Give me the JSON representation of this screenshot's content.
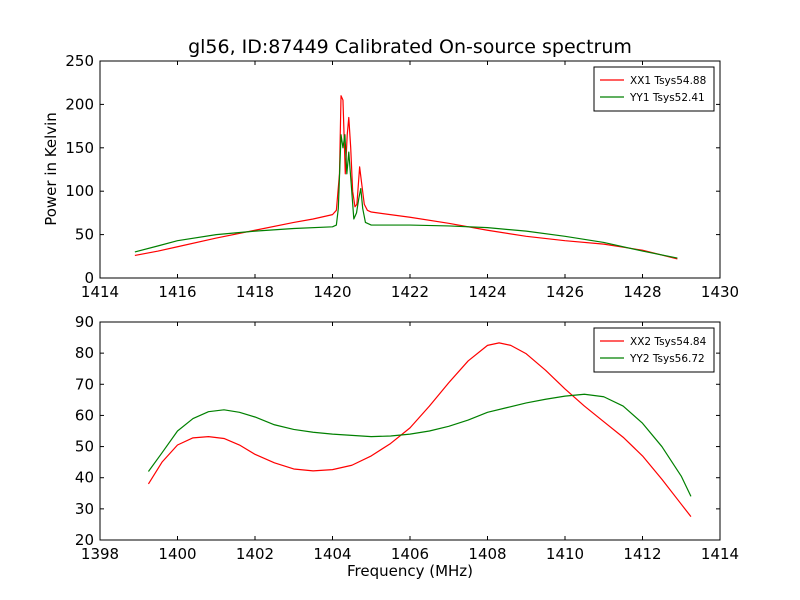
{
  "chart_data": [
    {
      "type": "line",
      "title": "gl56, ID:87449 Calibrated On-source spectrum",
      "xlabel": "",
      "ylabel": "Power in Kelvin",
      "xlim": [
        1414,
        1430
      ],
      "ylim": [
        0,
        250
      ],
      "xticks": [
        1414,
        1416,
        1418,
        1420,
        1422,
        1424,
        1426,
        1428,
        1430
      ],
      "yticks": [
        0,
        50,
        100,
        150,
        200,
        250
      ],
      "grid": false,
      "legend_position": "top-right",
      "series": [
        {
          "name": "XX1 Tsys54.88",
          "color": "#ff0000",
          "points": [
            [
              1414.9,
              26
            ],
            [
              1415.5,
              31
            ],
            [
              1416.0,
              36
            ],
            [
              1417.0,
              46
            ],
            [
              1418.0,
              55
            ],
            [
              1419.0,
              64
            ],
            [
              1419.5,
              68
            ],
            [
              1420.0,
              73
            ],
            [
              1420.1,
              78
            ],
            [
              1420.18,
              120
            ],
            [
              1420.22,
              210
            ],
            [
              1420.27,
              205
            ],
            [
              1420.33,
              120
            ],
            [
              1420.38,
              165
            ],
            [
              1420.42,
              185
            ],
            [
              1420.47,
              150
            ],
            [
              1420.52,
              100
            ],
            [
              1420.58,
              82
            ],
            [
              1420.63,
              85
            ],
            [
              1420.7,
              128
            ],
            [
              1420.75,
              110
            ],
            [
              1420.82,
              85
            ],
            [
              1420.9,
              78
            ],
            [
              1421.0,
              76
            ],
            [
              1422.0,
              70
            ],
            [
              1423.0,
              63
            ],
            [
              1424.0,
              55
            ],
            [
              1425.0,
              48
            ],
            [
              1426.0,
              43
            ],
            [
              1427.0,
              39
            ],
            [
              1428.0,
              32
            ],
            [
              1428.9,
              22
            ]
          ]
        },
        {
          "name": "YY1 Tsys52.41",
          "color": "#008000",
          "points": [
            [
              1414.9,
              30
            ],
            [
              1415.5,
              37
            ],
            [
              1416.0,
              43
            ],
            [
              1417.0,
              50
            ],
            [
              1418.0,
              54
            ],
            [
              1419.0,
              57
            ],
            [
              1420.0,
              59
            ],
            [
              1420.1,
              61
            ],
            [
              1420.15,
              80
            ],
            [
              1420.22,
              165
            ],
            [
              1420.27,
              150
            ],
            [
              1420.32,
              165
            ],
            [
              1420.37,
              120
            ],
            [
              1420.42,
              145
            ],
            [
              1420.48,
              110
            ],
            [
              1420.55,
              68
            ],
            [
              1420.62,
              75
            ],
            [
              1420.68,
              92
            ],
            [
              1420.73,
              103
            ],
            [
              1420.78,
              80
            ],
            [
              1420.85,
              64
            ],
            [
              1421.0,
              61
            ],
            [
              1422.0,
              61
            ],
            [
              1423.0,
              60
            ],
            [
              1424.0,
              58
            ],
            [
              1425.0,
              54
            ],
            [
              1426.0,
              48
            ],
            [
              1427.0,
              41
            ],
            [
              1428.0,
              31
            ],
            [
              1428.9,
              23
            ]
          ]
        }
      ]
    },
    {
      "type": "line",
      "title": "",
      "xlabel": "Frequency (MHz)",
      "ylabel": "",
      "xlim": [
        1398,
        1414
      ],
      "ylim": [
        20,
        90
      ],
      "xticks": [
        1398,
        1400,
        1402,
        1404,
        1406,
        1408,
        1410,
        1412,
        1414
      ],
      "yticks": [
        20,
        30,
        40,
        50,
        60,
        70,
        80,
        90
      ],
      "grid": false,
      "legend_position": "top-right",
      "series": [
        {
          "name": "XX2 Tsys54.84",
          "color": "#ff0000",
          "points": [
            [
              1399.25,
              38
            ],
            [
              1399.6,
              45
            ],
            [
              1400.0,
              50.5
            ],
            [
              1400.4,
              52.8
            ],
            [
              1400.8,
              53.2
            ],
            [
              1401.2,
              52.6
            ],
            [
              1401.6,
              50.5
            ],
            [
              1402.0,
              47.5
            ],
            [
              1402.5,
              44.8
            ],
            [
              1403.0,
              42.8
            ],
            [
              1403.5,
              42.2
            ],
            [
              1404.0,
              42.6
            ],
            [
              1404.5,
              44
            ],
            [
              1405.0,
              47
            ],
            [
              1405.5,
              51
            ],
            [
              1406.0,
              56
            ],
            [
              1406.5,
              63
            ],
            [
              1407.0,
              70.5
            ],
            [
              1407.5,
              77.5
            ],
            [
              1408.0,
              82.5
            ],
            [
              1408.3,
              83.3
            ],
            [
              1408.6,
              82.5
            ],
            [
              1409.0,
              79.8
            ],
            [
              1409.5,
              74.5
            ],
            [
              1410.0,
              68.5
            ],
            [
              1410.5,
              63
            ],
            [
              1411.0,
              58
            ],
            [
              1411.5,
              53
            ],
            [
              1412.0,
              47
            ],
            [
              1412.5,
              39.5
            ],
            [
              1413.0,
              31.5
            ],
            [
              1413.25,
              27.5
            ]
          ]
        },
        {
          "name": "YY2 Tsys56.72",
          "color": "#008000",
          "points": [
            [
              1399.25,
              42
            ],
            [
              1399.6,
              48
            ],
            [
              1400.0,
              55
            ],
            [
              1400.4,
              59
            ],
            [
              1400.8,
              61.2
            ],
            [
              1401.2,
              61.8
            ],
            [
              1401.6,
              61
            ],
            [
              1402.0,
              59.5
            ],
            [
              1402.5,
              57
            ],
            [
              1403.0,
              55.5
            ],
            [
              1403.5,
              54.6
            ],
            [
              1404.0,
              54
            ],
            [
              1404.5,
              53.6
            ],
            [
              1405.0,
              53.2
            ],
            [
              1405.5,
              53.4
            ],
            [
              1406.0,
              54
            ],
            [
              1406.5,
              55
            ],
            [
              1407.0,
              56.5
            ],
            [
              1407.5,
              58.5
            ],
            [
              1408.0,
              61
            ],
            [
              1408.5,
              62.5
            ],
            [
              1409.0,
              64
            ],
            [
              1409.5,
              65.2
            ],
            [
              1410.0,
              66.2
            ],
            [
              1410.5,
              66.8
            ],
            [
              1411.0,
              66
            ],
            [
              1411.5,
              63
            ],
            [
              1412.0,
              57.5
            ],
            [
              1412.5,
              50
            ],
            [
              1413.0,
              40.5
            ],
            [
              1413.25,
              34
            ]
          ]
        }
      ]
    }
  ]
}
